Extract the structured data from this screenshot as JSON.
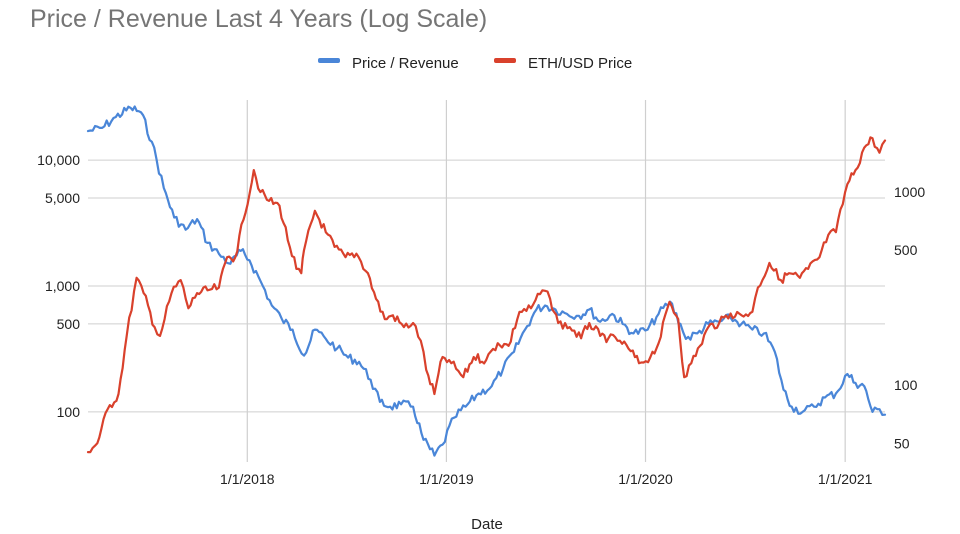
{
  "chart_data": {
    "type": "line",
    "title": "Price / Revenue Last 4 Years (Log Scale)",
    "xlabel": "Date",
    "ylabel": "",
    "y2label": "",
    "x_range": [
      "2017-03-15",
      "2021-03-15"
    ],
    "x_ticks": [
      {
        "date": "2018-01-01",
        "label": "1/1/2018"
      },
      {
        "date": "2019-01-01",
        "label": "1/1/2019"
      },
      {
        "date": "2020-01-01",
        "label": "1/1/2020"
      },
      {
        "date": "2021-01-01",
        "label": "1/1/2021"
      }
    ],
    "y_left": {
      "scale": "log",
      "range": [
        40,
        30000
      ],
      "ticks": [
        {
          "value": 100,
          "label": "100"
        },
        {
          "value": 500,
          "label": "500"
        },
        {
          "value": 1000,
          "label": "1,000"
        },
        {
          "value": 5000,
          "label": "5,000"
        },
        {
          "value": 10000,
          "label": "10,000"
        }
      ]
    },
    "y_right": {
      "scale": "log",
      "range": [
        40,
        3000
      ],
      "ticks": [
        {
          "value": 50,
          "label": "50"
        },
        {
          "value": 100,
          "label": "100"
        },
        {
          "value": 500,
          "label": "500"
        },
        {
          "value": 1000,
          "label": "1000"
        }
      ]
    },
    "grid": true,
    "legend": "top",
    "series": [
      {
        "name": "Price / Revenue",
        "axis": "left",
        "color": "#4a86d8",
        "points": [
          [
            "2017-03-15",
            17000
          ],
          [
            "2017-04-10",
            18000
          ],
          [
            "2017-05-05",
            22000
          ],
          [
            "2017-06-01",
            26000
          ],
          [
            "2017-06-20",
            24000
          ],
          [
            "2017-07-10",
            14000
          ],
          [
            "2017-08-01",
            6000
          ],
          [
            "2017-08-20",
            3500
          ],
          [
            "2017-09-10",
            2800
          ],
          [
            "2017-10-01",
            3400
          ],
          [
            "2017-10-20",
            2200
          ],
          [
            "2017-11-10",
            1800
          ],
          [
            "2017-12-01",
            1500
          ],
          [
            "2017-12-20",
            1900
          ],
          [
            "2018-01-05",
            1600
          ],
          [
            "2018-01-25",
            1100
          ],
          [
            "2018-02-15",
            700
          ],
          [
            "2018-03-05",
            550
          ],
          [
            "2018-03-25",
            450
          ],
          [
            "2018-04-15",
            280
          ],
          [
            "2018-05-05",
            450
          ],
          [
            "2018-05-25",
            380
          ],
          [
            "2018-06-15",
            320
          ],
          [
            "2018-07-05",
            270
          ],
          [
            "2018-07-25",
            250
          ],
          [
            "2018-08-15",
            180
          ],
          [
            "2018-09-01",
            120
          ],
          [
            "2018-09-20",
            110
          ],
          [
            "2018-10-10",
            115
          ],
          [
            "2018-11-01",
            110
          ],
          [
            "2018-11-20",
            60
          ],
          [
            "2018-12-10",
            45
          ],
          [
            "2018-12-25",
            55
          ],
          [
            "2019-01-15",
            90
          ],
          [
            "2019-02-05",
            110
          ],
          [
            "2019-03-01",
            140
          ],
          [
            "2019-03-25",
            160
          ],
          [
            "2019-04-15",
            220
          ],
          [
            "2019-05-05",
            300
          ],
          [
            "2019-05-25",
            450
          ],
          [
            "2019-06-15",
            650
          ],
          [
            "2019-07-01",
            700
          ],
          [
            "2019-07-20",
            650
          ],
          [
            "2019-08-10",
            600
          ],
          [
            "2019-09-01",
            580
          ],
          [
            "2019-09-20",
            650
          ],
          [
            "2019-10-10",
            520
          ],
          [
            "2019-11-01",
            600
          ],
          [
            "2019-11-20",
            500
          ],
          [
            "2019-12-10",
            420
          ],
          [
            "2020-01-05",
            450
          ],
          [
            "2020-01-25",
            600
          ],
          [
            "2020-02-15",
            750
          ],
          [
            "2020-03-05",
            500
          ],
          [
            "2020-03-15",
            380
          ],
          [
            "2020-04-05",
            420
          ],
          [
            "2020-04-25",
            500
          ],
          [
            "2020-05-15",
            520
          ],
          [
            "2020-06-05",
            560
          ],
          [
            "2020-06-25",
            500
          ],
          [
            "2020-07-15",
            450
          ],
          [
            "2020-08-05",
            420
          ],
          [
            "2020-08-25",
            300
          ],
          [
            "2020-09-10",
            150
          ],
          [
            "2020-09-25",
            110
          ],
          [
            "2020-10-15",
            100
          ],
          [
            "2020-11-05",
            110
          ],
          [
            "2020-11-25",
            130
          ],
          [
            "2020-12-15",
            140
          ],
          [
            "2021-01-05",
            200
          ],
          [
            "2021-01-20",
            170
          ],
          [
            "2021-02-05",
            160
          ],
          [
            "2021-02-20",
            100
          ],
          [
            "2021-03-05",
            105
          ],
          [
            "2021-03-15",
            95
          ]
        ]
      },
      {
        "name": "ETH/USD Price",
        "axis": "right",
        "color": "#d9412c",
        "points": [
          [
            "2017-03-15",
            45
          ],
          [
            "2017-04-01",
            50
          ],
          [
            "2017-04-20",
            75
          ],
          [
            "2017-05-10",
            90
          ],
          [
            "2017-05-25",
            180
          ],
          [
            "2017-06-12",
            360
          ],
          [
            "2017-06-25",
            300
          ],
          [
            "2017-07-15",
            200
          ],
          [
            "2017-07-25",
            180
          ],
          [
            "2017-08-15",
            300
          ],
          [
            "2017-09-01",
            350
          ],
          [
            "2017-09-15",
            250
          ],
          [
            "2017-10-01",
            300
          ],
          [
            "2017-10-20",
            310
          ],
          [
            "2017-11-10",
            320
          ],
          [
            "2017-11-25",
            460
          ],
          [
            "2017-12-10",
            460
          ],
          [
            "2017-12-25",
            720
          ],
          [
            "2018-01-13",
            1300
          ],
          [
            "2018-01-25",
            1000
          ],
          [
            "2018-02-10",
            900
          ],
          [
            "2018-03-01",
            850
          ],
          [
            "2018-03-20",
            520
          ],
          [
            "2018-04-01",
            400
          ],
          [
            "2018-04-10",
            380
          ],
          [
            "2018-04-15",
            500
          ],
          [
            "2018-05-05",
            800
          ],
          [
            "2018-05-25",
            620
          ],
          [
            "2018-06-10",
            520
          ],
          [
            "2018-06-30",
            460
          ],
          [
            "2018-07-20",
            480
          ],
          [
            "2018-08-10",
            380
          ],
          [
            "2018-08-25",
            280
          ],
          [
            "2018-09-10",
            220
          ],
          [
            "2018-09-25",
            230
          ],
          [
            "2018-10-15",
            200
          ],
          [
            "2018-11-01",
            210
          ],
          [
            "2018-11-15",
            170
          ],
          [
            "2018-11-25",
            120
          ],
          [
            "2018-12-10",
            90
          ],
          [
            "2018-12-25",
            140
          ],
          [
            "2019-01-10",
            130
          ],
          [
            "2019-02-01",
            110
          ],
          [
            "2019-02-20",
            140
          ],
          [
            "2019-03-15",
            135
          ],
          [
            "2019-04-05",
            165
          ],
          [
            "2019-04-25",
            160
          ],
          [
            "2019-05-15",
            240
          ],
          [
            "2019-06-05",
            250
          ],
          [
            "2019-06-26",
            310
          ],
          [
            "2019-07-10",
            280
          ],
          [
            "2019-07-25",
            210
          ],
          [
            "2019-08-15",
            200
          ],
          [
            "2019-09-05",
            175
          ],
          [
            "2019-09-20",
            210
          ],
          [
            "2019-10-10",
            180
          ],
          [
            "2019-10-25",
            175
          ],
          [
            "2019-11-15",
            170
          ],
          [
            "2019-12-05",
            150
          ],
          [
            "2019-12-20",
            130
          ],
          [
            "2020-01-10",
            140
          ],
          [
            "2020-01-25",
            165
          ],
          [
            "2020-02-14",
            270
          ],
          [
            "2020-03-01",
            220
          ],
          [
            "2020-03-12",
            110
          ],
          [
            "2020-03-25",
            130
          ],
          [
            "2020-04-10",
            160
          ],
          [
            "2020-04-25",
            200
          ],
          [
            "2020-05-15",
            210
          ],
          [
            "2020-06-05",
            235
          ],
          [
            "2020-06-25",
            230
          ],
          [
            "2020-07-15",
            240
          ],
          [
            "2020-07-25",
            320
          ],
          [
            "2020-08-15",
            430
          ],
          [
            "2020-09-05",
            350
          ],
          [
            "2020-09-20",
            380
          ],
          [
            "2020-10-10",
            360
          ],
          [
            "2020-10-25",
            400
          ],
          [
            "2020-11-15",
            460
          ],
          [
            "2020-12-01",
            600
          ],
          [
            "2020-12-15",
            620
          ],
          [
            "2021-01-05",
            1100
          ],
          [
            "2021-01-20",
            1300
          ],
          [
            "2021-02-05",
            1700
          ],
          [
            "2021-02-20",
            1900
          ],
          [
            "2021-03-05",
            1600
          ],
          [
            "2021-03-15",
            1850
          ]
        ]
      }
    ]
  }
}
